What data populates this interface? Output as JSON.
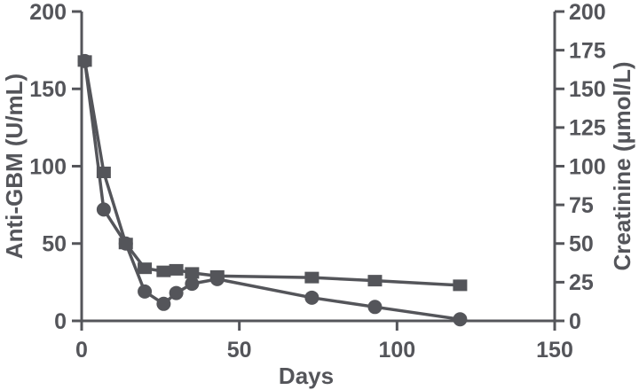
{
  "figure": {
    "background": "#ffffff",
    "ink": "#54555a"
  },
  "chart_data": {
    "type": "line",
    "title": "",
    "xlabel": "Days",
    "ylabel_left": "Anti-GBM (U/mL)",
    "ylabel_right": "Creatinine (µmol/L)",
    "xlim": [
      0,
      150
    ],
    "ylim_left": [
      0,
      200
    ],
    "ylim_right": [
      0,
      200
    ],
    "x_ticks": [
      0,
      50,
      100,
      150
    ],
    "left_ticks": [
      0,
      50,
      100,
      150,
      200
    ],
    "right_ticks": [
      0,
      25,
      50,
      75,
      100,
      125,
      150,
      175,
      200
    ],
    "grid": false,
    "legend": "none",
    "x": [
      1,
      7,
      14,
      20,
      26,
      30,
      35,
      43,
      73,
      93,
      120
    ],
    "series": [
      {
        "name": "circles",
        "marker": "circle",
        "color": "#54555a",
        "values": [
          168,
          72,
          50,
          19,
          11,
          18,
          24,
          27,
          15,
          9,
          1
        ]
      },
      {
        "name": "squares",
        "marker": "square",
        "color": "#54555a",
        "values": [
          168,
          96,
          50,
          34,
          32,
          33,
          31,
          29,
          28,
          26,
          23
        ]
      }
    ]
  }
}
